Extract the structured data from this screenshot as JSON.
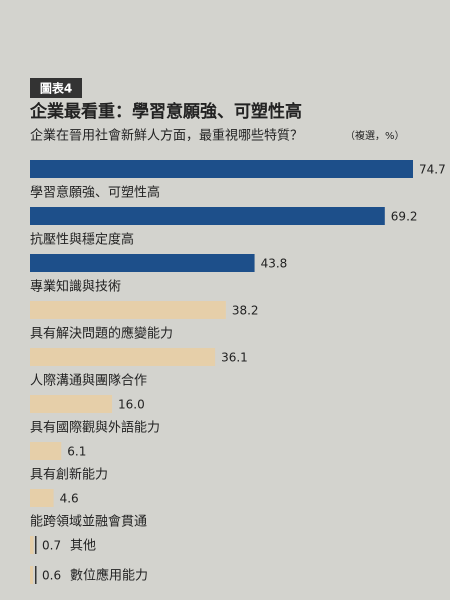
{
  "chart_data": {
    "type": "bar",
    "orientation": "horizontal",
    "badge": "圖表4",
    "title": "企業最看重：學習意願強、可塑性高",
    "subtitle": "企業在晉用社會新鮮人方面，最重視哪些特質？",
    "note": "（複選，%）",
    "categories": [
      "學習意願強、可塑性高",
      "抗壓性與穩定度高",
      "專業知識與技術",
      "具有解決問題的應變能力",
      "人際溝通與團隊合作",
      "具有國際觀與外語能力",
      "具有創新能力",
      "能跨領域並融會貫通",
      "其他",
      "數位應用能力"
    ],
    "values": [
      74.7,
      69.2,
      43.8,
      38.2,
      36.1,
      16.0,
      6.1,
      4.6,
      0.7,
      0.6
    ],
    "value_labels": [
      "74.7",
      "69.2",
      "43.8",
      "38.2",
      "36.1",
      "16.0",
      "6.1",
      "4.6",
      "0.7",
      "0.6"
    ],
    "colors": [
      "#1d4f8a",
      "#1d4f8a",
      "#1d4f8a",
      "#e6cfa9",
      "#e6cfa9",
      "#e6cfa9",
      "#e6cfa9",
      "#e6cfa9",
      "#e6cfa9",
      "#e6cfa9"
    ]
  }
}
